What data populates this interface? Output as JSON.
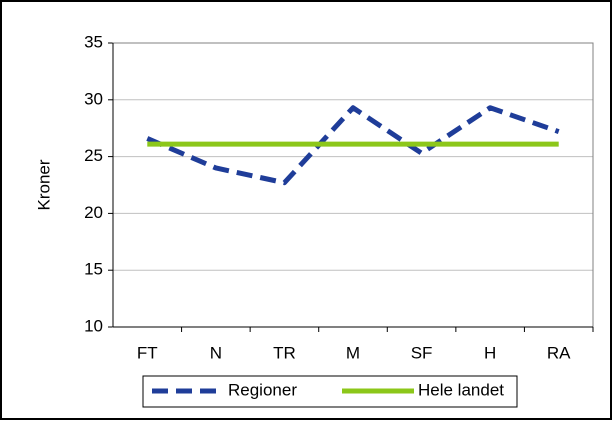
{
  "chart_data": {
    "type": "line",
    "y_label": "Kroner",
    "categories": [
      "FT",
      "N",
      "TR",
      "M",
      "SF",
      "H",
      "RA"
    ],
    "series": [
      {
        "name": "Regioner",
        "color": "#1f3d99",
        "dashed": true,
        "values": [
          26.6,
          24.0,
          22.7,
          29.3,
          25.3,
          29.3,
          27.2
        ]
      },
      {
        "name": "Hele landet",
        "color": "#8cc71a",
        "dashed": false,
        "values": [
          26.1,
          26.1,
          26.1,
          26.1,
          26.1,
          26.1,
          26.1
        ]
      }
    ],
    "ylim": [
      10,
      35
    ],
    "yticks": [
      10,
      15,
      20,
      25,
      30,
      35
    ],
    "grid": true,
    "legend": "bottom"
  }
}
